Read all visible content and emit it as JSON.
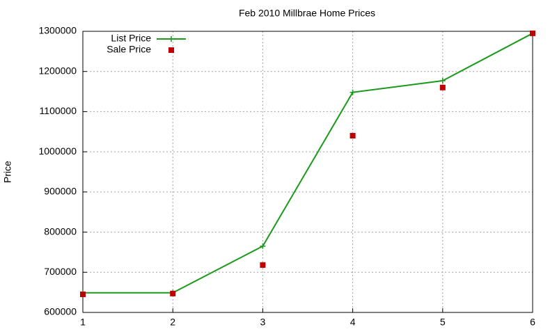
{
  "chart_data": {
    "type": "line",
    "title": "Feb 2010 Millbrae Home Prices",
    "y_label": "Price",
    "x": [
      1,
      2,
      3,
      4,
      5,
      6
    ],
    "series": [
      {
        "name": "List Price",
        "color": "#1a9a1a",
        "lines": true,
        "marker": "plus",
        "values": [
          649000,
          649000,
          765000,
          1148000,
          1177000,
          1295000
        ]
      },
      {
        "name": "Sale Price",
        "color": "#c00000",
        "lines": false,
        "marker": "square",
        "values": [
          645000,
          647000,
          718000,
          1040000,
          1160000,
          1295000
        ]
      }
    ],
    "xlim": [
      1,
      6
    ],
    "xticks": [
      1,
      2,
      3,
      4,
      5,
      6
    ],
    "ylim": [
      600000,
      1300000
    ],
    "yticks": [
      600000,
      700000,
      800000,
      900000,
      1000000,
      1100000,
      1200000,
      1300000
    ],
    "grid": true,
    "legend": "top-left"
  }
}
